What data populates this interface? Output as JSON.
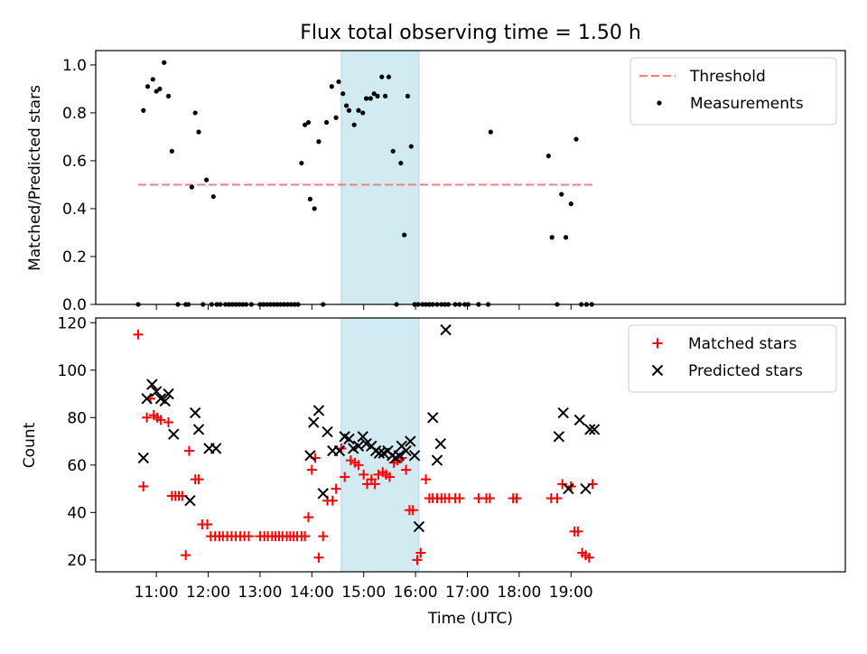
{
  "chart_data": {
    "type": "scatter",
    "title": "Flux total observing time = 1.50 h",
    "xlabel": "Time (UTC)",
    "x_ticks": [
      "11:00",
      "12:00",
      "13:00",
      "14:00",
      "15:00",
      "16:00",
      "17:00",
      "18:00",
      "19:00"
    ],
    "highlight_span": {
      "start": "14:34",
      "end": "16:04"
    },
    "colors": {
      "threshold": "#f08080",
      "measurements": "#000000",
      "matched": "#ff0000",
      "predicted": "#000000",
      "span": "#add8e6"
    },
    "subplots": [
      {
        "ylabel": "Matched/Predicted stars",
        "ylim": [
          0,
          1.06
        ],
        "y_ticks": [
          "0.0",
          "0.2",
          "0.4",
          "0.6",
          "0.8",
          "1.0"
        ],
        "legend": "upper right",
        "series": [
          {
            "name": "Threshold",
            "kind": "line",
            "style": "dashed",
            "x": [
              "10:39",
              "19:25"
            ],
            "y": [
              0.5,
              0.5
            ]
          },
          {
            "name": "Measurements",
            "kind": "scatter",
            "marker": "dot",
            "x": [
              "10:39",
              "10:45",
              "10:50",
              "10:56",
              "11:00",
              "11:04",
              "11:09",
              "11:14",
              "11:18",
              "11:25",
              "11:34",
              "11:37",
              "11:41",
              "11:45",
              "11:49",
              "11:54",
              "11:58",
              "12:04",
              "12:06",
              "12:10",
              "12:14",
              "12:20",
              "12:24",
              "12:28",
              "12:32",
              "12:36",
              "12:40",
              "12:44",
              "12:50",
              "13:00",
              "13:04",
              "13:08",
              "13:12",
              "13:16",
              "13:20",
              "13:24",
              "13:28",
              "13:32",
              "13:36",
              "13:40",
              "13:44",
              "13:48",
              "13:52",
              "13:56",
              "13:58",
              "14:03",
              "14:08",
              "14:13",
              "14:17",
              "14:23",
              "14:28",
              "14:31",
              "14:36",
              "14:40",
              "14:43",
              "14:49",
              "14:54",
              "14:59",
              "15:03",
              "15:08",
              "15:12",
              "15:16",
              "15:21",
              "15:25",
              "15:29",
              "15:34",
              "15:38",
              "15:43",
              "15:47",
              "15:51",
              "15:55",
              "15:59",
              "16:03",
              "16:08",
              "16:12",
              "16:16",
              "16:20",
              "16:25",
              "16:30",
              "16:34",
              "16:38",
              "16:46",
              "16:51",
              "16:57",
              "17:01",
              "17:13",
              "17:24",
              "17:27",
              "18:34",
              "18:38",
              "18:44",
              "18:49",
              "18:54",
              "19:00",
              "19:06",
              "19:12",
              "19:18",
              "19:24"
            ],
            "y": [
              0,
              0.81,
              0.91,
              0.94,
              0.89,
              0.9,
              1.01,
              0.87,
              0.64,
              0,
              0,
              0,
              0.49,
              0.8,
              0.72,
              0,
              0.52,
              0,
              0.45,
              0,
              0,
              0,
              0,
              0,
              0,
              0,
              0,
              0,
              0,
              0,
              0,
              0,
              0,
              0,
              0,
              0,
              0,
              0,
              0,
              0,
              0,
              0.59,
              0.75,
              0.76,
              0.44,
              0.4,
              0.68,
              0,
              0.76,
              0.91,
              0.78,
              0.93,
              0.88,
              0.83,
              0.81,
              0.75,
              0.81,
              0.8,
              0.86,
              0.86,
              0.88,
              0.87,
              0.95,
              0.87,
              0.95,
              0.64,
              0,
              0.59,
              0.29,
              0.87,
              0.66,
              0,
              0,
              0,
              0,
              0,
              0,
              0,
              0,
              0,
              0,
              0,
              0,
              0,
              0,
              0,
              0,
              0.72,
              0.62,
              0.28,
              0,
              0.46,
              0.28,
              0.42,
              0.69,
              0,
              0,
              0
            ]
          }
        ]
      },
      {
        "ylabel": "Count",
        "ylim": [
          15,
          122
        ],
        "y_ticks": [
          "20",
          "40",
          "60",
          "80",
          "100",
          "120"
        ],
        "legend": "upper right",
        "series": [
          {
            "name": "Matched stars",
            "kind": "scatter",
            "marker": "plus",
            "x": [
              "10:39",
              "10:45",
              "10:49",
              "10:53",
              "10:57",
              "11:01",
              "11:05",
              "11:14",
              "11:18",
              "11:22",
              "11:26",
              "11:30",
              "11:34",
              "11:38",
              "11:45",
              "11:49",
              "11:53",
              "11:59",
              "12:03",
              "12:08",
              "12:13",
              "12:17",
              "12:22",
              "12:27",
              "12:32",
              "12:37",
              "12:42",
              "12:47",
              "13:00",
              "13:05",
              "13:09",
              "13:14",
              "13:18",
              "13:22",
              "13:26",
              "13:31",
              "13:35",
              "13:39",
              "13:43",
              "13:48",
              "13:52",
              "13:56",
              "14:00",
              "14:04",
              "14:08",
              "14:13",
              "14:18",
              "14:24",
              "14:28",
              "14:34",
              "14:38",
              "14:45",
              "14:50",
              "14:54",
              "15:00",
              "15:04",
              "15:09",
              "15:13",
              "15:17",
              "15:22",
              "15:26",
              "15:30",
              "15:35",
              "15:39",
              "15:44",
              "15:49",
              "15:53",
              "15:57",
              "16:02",
              "16:06",
              "16:12",
              "16:16",
              "16:20",
              "16:25",
              "16:30",
              "16:34",
              "16:39",
              "16:46",
              "16:51",
              "17:13",
              "17:22",
              "17:26",
              "17:53",
              "17:57",
              "18:37",
              "18:44",
              "18:50",
              "19:00",
              "19:04",
              "19:08",
              "19:13",
              "19:17",
              "19:21",
              "19:25"
            ],
            "y": [
              115,
              51,
              80,
              88,
              81,
              80,
              79,
              78,
              47,
              47,
              47,
              47,
              22,
              66,
              54,
              54,
              35,
              35,
              30,
              30,
              30,
              30,
              30,
              30,
              30,
              30,
              30,
              30,
              30,
              30,
              30,
              30,
              30,
              30,
              30,
              30,
              30,
              30,
              30,
              30,
              30,
              38,
              58,
              63,
              21,
              30,
              45,
              45,
              50,
              67,
              55,
              62,
              61,
              60,
              56,
              52,
              54,
              52,
              56,
              57,
              56,
              55,
              61,
              62,
              63,
              58,
              41,
              41,
              20,
              23,
              54,
              46,
              46,
              46,
              46,
              46,
              46,
              46,
              46,
              46,
              46,
              46,
              46,
              46,
              46,
              46,
              52,
              51,
              32,
              32,
              23,
              22,
              21,
              52
            ]
          },
          {
            "name": "Predicted stars",
            "kind": "scatter",
            "marker": "x",
            "x": [
              "10:45",
              "10:49",
              "10:55",
              "11:00",
              "11:05",
              "11:10",
              "11:14",
              "11:20",
              "11:39",
              "11:45",
              "11:49",
              "12:01",
              "12:09",
              "13:58",
              "14:02",
              "14:08",
              "14:13",
              "14:18",
              "14:24",
              "14:32",
              "14:38",
              "14:43",
              "14:48",
              "14:54",
              "14:59",
              "15:03",
              "15:09",
              "15:14",
              "15:18",
              "15:23",
              "15:28",
              "15:33",
              "15:37",
              "15:41",
              "15:44",
              "15:49",
              "15:54",
              "15:59",
              "16:04",
              "16:20",
              "16:25",
              "16:29",
              "16:35",
              "18:46",
              "18:51",
              "18:57",
              "19:10",
              "19:17",
              "19:22",
              "19:27"
            ],
            "y": [
              63,
              88,
              94,
              91,
              88,
              87,
              90,
              73,
              45,
              82,
              75,
              67,
              67,
              64,
              78,
              83,
              48,
              74,
              66,
              66,
              72,
              71,
              67,
              68,
              72,
              69,
              68,
              66,
              65,
              65,
              66,
              64,
              63,
              64,
              68,
              66,
              70,
              64,
              34,
              80,
              62,
              69,
              117,
              72,
              82,
              50,
              79,
              50,
              75,
              75
            ]
          }
        ]
      }
    ]
  }
}
